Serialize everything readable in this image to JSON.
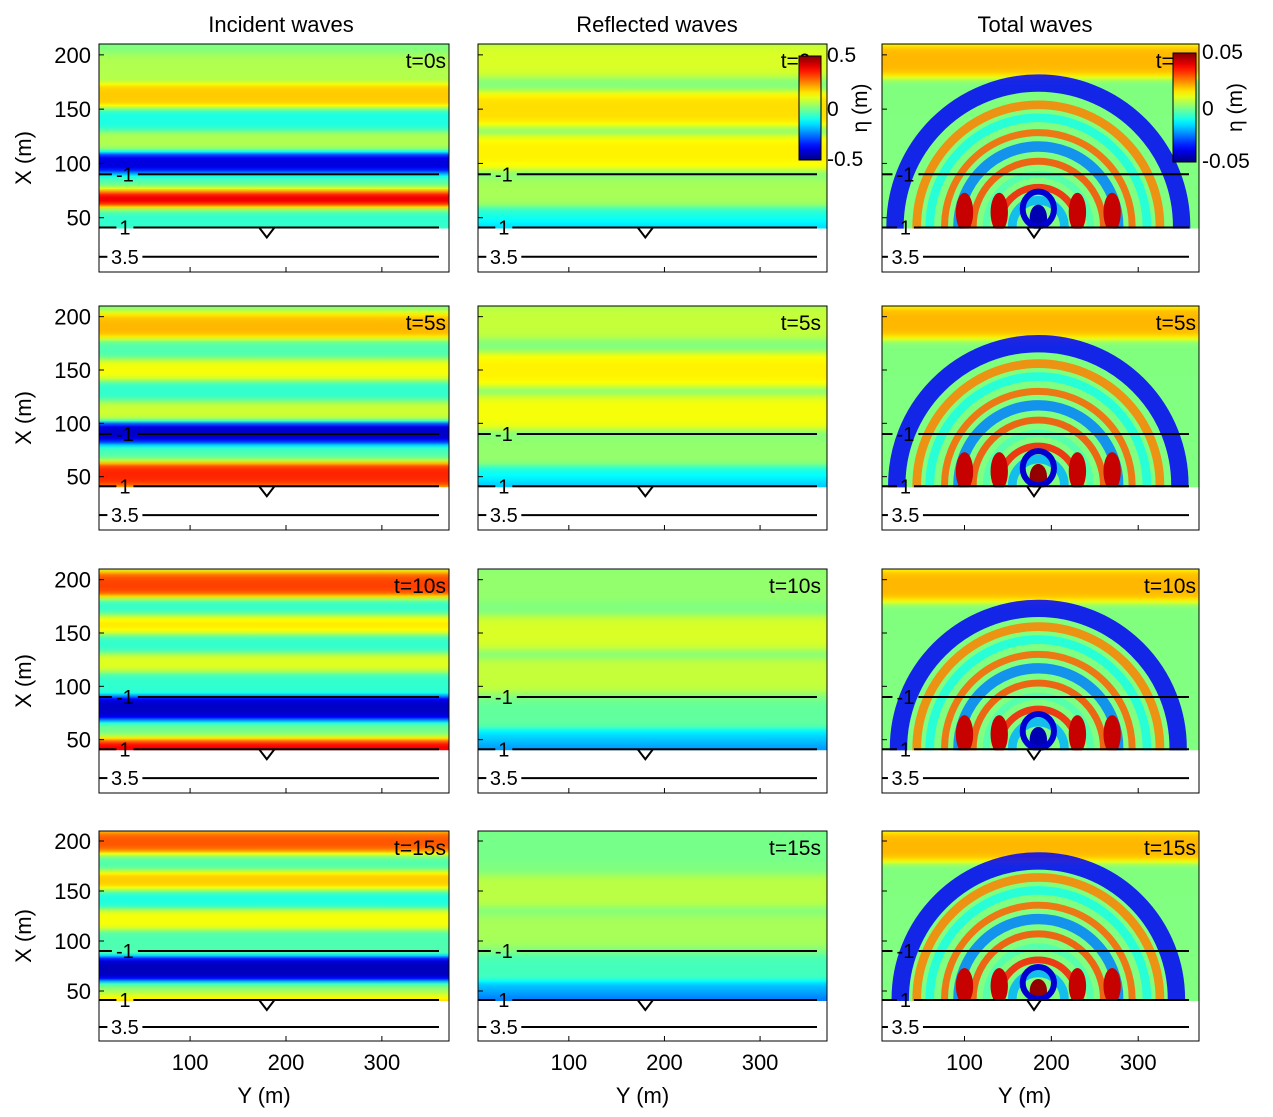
{
  "chart_data": {
    "type": "heatmap",
    "layout": "4 rows x 3 columns of contour maps",
    "column_titles": [
      "Incident waves",
      "Reflected waves",
      "Total waves"
    ],
    "time_labels": [
      "t=0s",
      "t=5s",
      "t=10s",
      "t=15s"
    ],
    "xlabel": "Y (m)",
    "ylabel": "X (m)",
    "y_axis": {
      "range": [
        0,
        210
      ],
      "ticks": [
        50,
        100,
        150,
        200
      ]
    },
    "x_axis": {
      "range": [
        5,
        370
      ],
      "ticks": [
        100,
        200,
        300
      ]
    },
    "depth_contours": [
      {
        "label": "-1",
        "x": 90
      },
      {
        "label": "1",
        "x": 41
      },
      {
        "label": "3.5",
        "x": 14
      }
    ],
    "colorbars": [
      {
        "column": "Reflected waves",
        "label": "η (m)",
        "min": -0.5,
        "max": 0.5,
        "ticks": [
          "0.5",
          "0",
          "-0.5"
        ]
      },
      {
        "column": "Total waves",
        "label": "η (m)",
        "min": -0.05,
        "max": 0.05,
        "ticks": [
          "0.05",
          "0",
          "-0.05"
        ]
      }
    ],
    "colormap": [
      "#00008f",
      "#0000ff",
      "#0080ff",
      "#00ffff",
      "#80ff80",
      "#ffff00",
      "#ff8000",
      "#ff0000",
      "#800000"
    ]
  }
}
